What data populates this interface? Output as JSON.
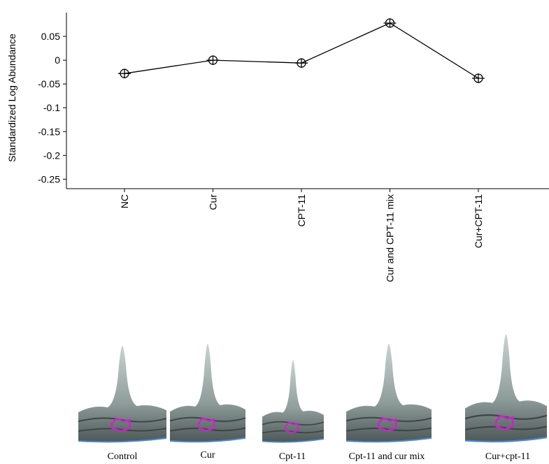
{
  "chart_data": {
    "type": "line",
    "ylabel": "Standardized Log Abundance",
    "categories": [
      "NC",
      "Cur",
      "CPT-11",
      "Cur and CPT-11 mix",
      "Cur+CPT-11"
    ],
    "series": [
      {
        "name": "Standardized Log Abundance",
        "color": "#000000",
        "values": [
          -0.028,
          0,
          -0.006,
          0.078,
          -0.038
        ],
        "errors": [
          0.01,
          0.01,
          0.01,
          0.01,
          0.01
        ]
      }
    ],
    "ylim": [
      -0.27,
      0.1
    ],
    "yticks": [
      0.05,
      0,
      -0.05,
      -0.1,
      -0.15,
      -0.2,
      -0.25
    ]
  },
  "panels": [
    "Control",
    "Cur",
    "Cpt-11",
    "Cpt-11 and cur mix",
    "Cur+cpt-11"
  ]
}
